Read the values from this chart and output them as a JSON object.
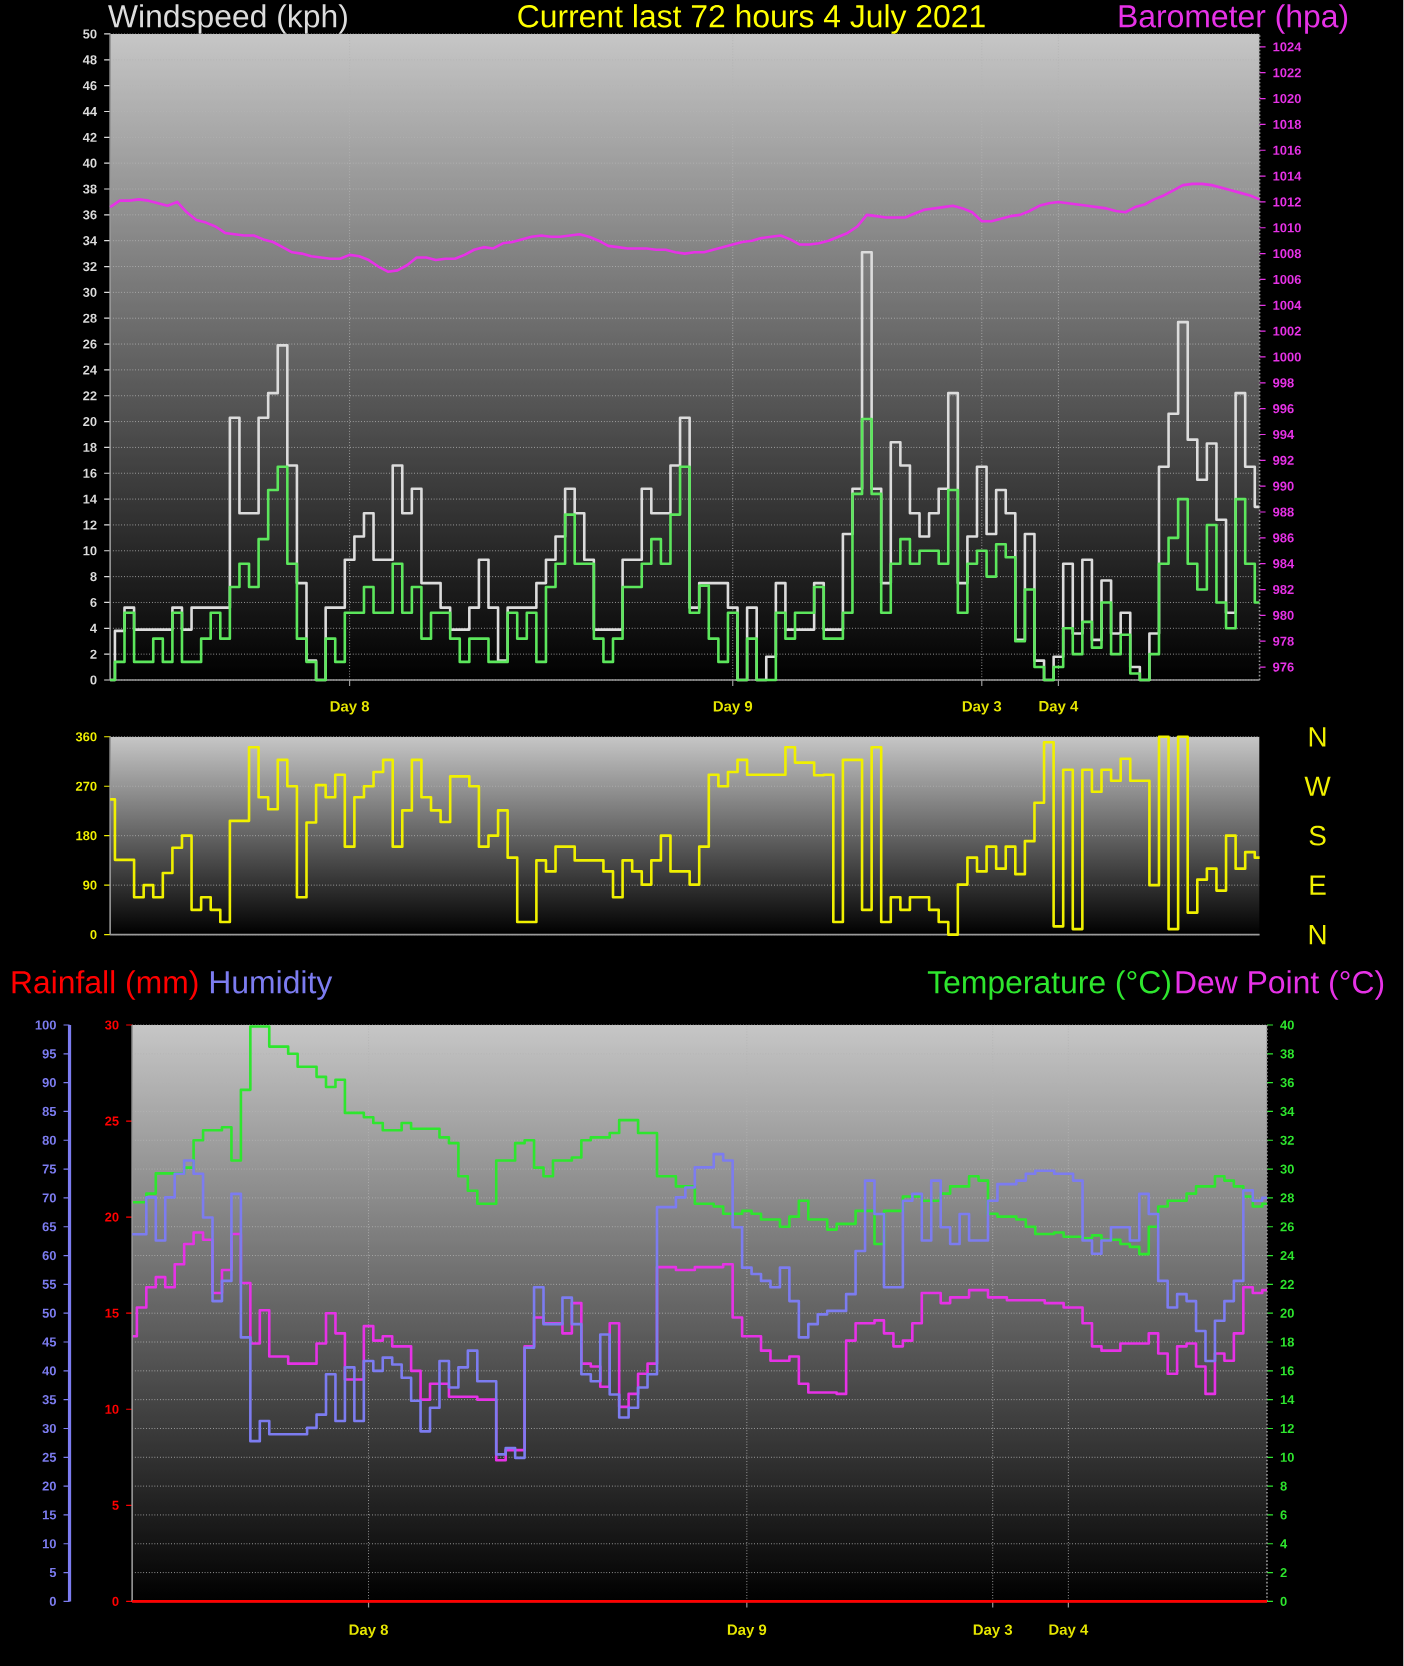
{
  "chart_data": [
    {
      "type": "step",
      "title": "Current last 72 hours 4 July 2021",
      "ylabel": "Windspeed (kph)",
      "y2label": "Barometer (hpa)",
      "categories": [
        null,
        null,
        null,
        null,
        null,
        null,
        null,
        null,
        null,
        null,
        null,
        null,
        null,
        null,
        null,
        null,
        null,
        null,
        null,
        null,
        null,
        null,
        null,
        null,
        null,
        "Day 8",
        null,
        null,
        null,
        null,
        null,
        null,
        null,
        null,
        null,
        null,
        null,
        null,
        null,
        null,
        null,
        null,
        null,
        null,
        null,
        null,
        null,
        null,
        null,
        null,
        null,
        null,
        null,
        null,
        null,
        null,
        null,
        null,
        null,
        null,
        null,
        null,
        null,
        null,
        null,
        "Day 9",
        null,
        null,
        null,
        null,
        null,
        null,
        null,
        null,
        null,
        null,
        null,
        null,
        null,
        null,
        null,
        null,
        null,
        null,
        null,
        null,
        null,
        null,
        null,
        null,
        null,
        "Day 3",
        null,
        null,
        null,
        null,
        null,
        null,
        null,
        "Day 4",
        null,
        null,
        null,
        null,
        null,
        null,
        null,
        null,
        null,
        null,
        null,
        null,
        null,
        null,
        null,
        null,
        null,
        null,
        null,
        null,
        null
      ],
      "ylim": [
        0,
        50
      ],
      "yticks": [
        0,
        2,
        4,
        6,
        8,
        10,
        12,
        14,
        16,
        18,
        20,
        22,
        24,
        26,
        28,
        30,
        32,
        34,
        36,
        38,
        40,
        42,
        44,
        46,
        48,
        50
      ],
      "y2lim": [
        975,
        1025
      ],
      "y2ticks": [
        976,
        978,
        980,
        982,
        984,
        986,
        988,
        990,
        992,
        994,
        996,
        998,
        1000,
        1002,
        1004,
        1006,
        1008,
        1010,
        1012,
        1014,
        1016,
        1018,
        1020,
        1022,
        1024
      ],
      "grid": true,
      "series": [
        {
          "color": "#dcdcdc",
          "values": [
            0,
            3.8,
            5.6,
            3.9,
            3.9,
            3.9,
            3.9,
            5.6,
            3.9,
            5.6,
            5.6,
            5.6,
            5.6,
            20.3,
            12.9,
            12.9,
            20.3,
            22.2,
            25.9,
            16.6,
            7.5,
            1.5,
            0,
            5.6,
            5.6,
            9.3,
            11.1,
            12.9,
            9.3,
            9.3,
            16.6,
            12.9,
            14.8,
            7.5,
            7.5,
            5.6,
            3.9,
            3.9,
            5.6,
            9.3,
            5.6,
            1.5,
            5.6,
            5.6,
            5.6,
            7.5,
            9.3,
            11.1,
            14.8,
            12.9,
            9.3,
            3.9,
            3.9,
            3.9,
            9.3,
            9.3,
            14.8,
            12.9,
            12.9,
            16.6,
            20.3,
            5.6,
            7.5,
            7.5,
            7.5,
            5.6,
            0,
            5.6,
            0,
            1.8,
            7.5,
            3.9,
            3.9,
            3.9,
            7.5,
            3.9,
            3.9,
            11.3,
            14.8,
            33.1,
            14.8,
            7.5,
            18.4,
            16.6,
            12.9,
            11.1,
            12.9,
            14.8,
            22.2,
            7.5,
            11.1,
            16.5,
            11.3,
            14.7,
            12.9,
            3.1,
            11.3,
            1.5,
            0,
            1.8,
            9.0,
            3.6,
            9.3,
            3.1,
            7.7,
            3.6,
            5.2,
            1.0,
            0,
            3.6,
            16.5,
            20.6,
            27.7,
            18.6,
            15.5,
            18.3,
            12.4,
            5.2,
            22.2,
            16.5,
            13.4
          ]
        },
        {
          "color": "#5ce65c",
          "values": [
            0,
            1.4,
            5.2,
            1.4,
            1.4,
            3.2,
            1.4,
            5.2,
            1.4,
            1.4,
            3.2,
            5.2,
            3.2,
            7.2,
            9.0,
            7.2,
            10.9,
            14.7,
            16.5,
            9.0,
            3.2,
            1.4,
            0,
            3.2,
            1.4,
            5.2,
            5.2,
            7.2,
            5.2,
            5.2,
            9.0,
            5.2,
            7.2,
            3.2,
            5.2,
            5.2,
            3.2,
            1.4,
            3.2,
            3.2,
            1.4,
            1.4,
            5.2,
            3.2,
            5.2,
            1.4,
            7.2,
            9.0,
            12.8,
            9.0,
            9.0,
            3.2,
            1.4,
            3.2,
            7.2,
            7.2,
            9.0,
            10.9,
            9.0,
            12.8,
            16.5,
            5.2,
            7.3,
            3.2,
            1.4,
            5.2,
            0,
            3.2,
            0,
            0,
            5.2,
            3.2,
            5.2,
            5.2,
            7.2,
            3.2,
            3.2,
            5.2,
            14.4,
            20.2,
            14.4,
            5.2,
            9.0,
            10.9,
            9.0,
            10.0,
            10.0,
            9.0,
            14.7,
            5.2,
            9.0,
            10.0,
            8.0,
            10.5,
            9.5,
            3.0,
            7.0,
            1.0,
            0,
            1.0,
            4.0,
            2.0,
            4.5,
            2.5,
            6.0,
            2.0,
            3.5,
            0.5,
            0,
            2.0,
            9.0,
            11.0,
            14.0,
            9.0,
            7.0,
            12.0,
            6.0,
            4.0,
            14.0,
            9.0,
            6.0
          ]
        },
        {
          "type": "line",
          "axis": "y2",
          "color": "#e632e6",
          "values": [
            1011.6,
            1012.1,
            1012.1,
            1012.2,
            1012.1,
            1011.9,
            1011.7,
            1012.0,
            1011.2,
            1010.6,
            1010.4,
            1010.1,
            1009.6,
            1009.5,
            1009.4,
            1009.4,
            1009.1,
            1008.9,
            1008.5,
            1008.1,
            1008.0,
            1007.8,
            1007.7,
            1007.6,
            1007.6,
            1007.9,
            1007.8,
            1007.5,
            1007.0,
            1006.6,
            1006.7,
            1007.1,
            1007.7,
            1007.7,
            1007.5,
            1007.6,
            1007.6,
            1007.9,
            1008.3,
            1008.5,
            1008.4,
            1008.8,
            1008.9,
            1009.1,
            1009.3,
            1009.4,
            1009.3,
            1009.3,
            1009.4,
            1009.5,
            1009.3,
            1009.0,
            1008.6,
            1008.5,
            1008.4,
            1008.4,
            1008.4,
            1008.3,
            1008.3,
            1008.1,
            1008.0,
            1008.1,
            1008.1,
            1008.3,
            1008.5,
            1008.7,
            1008.9,
            1009.0,
            1009.2,
            1009.3,
            1009.4,
            1009.1,
            1008.7,
            1008.7,
            1008.8,
            1009.0,
            1009.3,
            1009.6,
            1010.1,
            1011.0,
            1010.9,
            1010.8,
            1010.8,
            1010.8,
            1011.1,
            1011.4,
            1011.5,
            1011.6,
            1011.7,
            1011.5,
            1011.2,
            1010.5,
            1010.5,
            1010.7,
            1010.9,
            1011.0,
            1011.3,
            1011.7,
            1011.9,
            1012.0,
            1011.9,
            1011.8,
            1011.7,
            1011.6,
            1011.5,
            1011.3,
            1011.2,
            1011.6,
            1011.8,
            1012.2,
            1012.5,
            1012.9,
            1013.3,
            1013.4,
            1013.4,
            1013.3,
            1013.1,
            1012.9,
            1012.7,
            1012.5,
            1012.2
          ]
        }
      ]
    },
    {
      "type": "step",
      "categories": [
        null,
        null,
        null,
        null,
        null,
        null,
        null,
        null,
        null,
        null,
        null,
        null,
        null,
        null,
        null,
        null,
        null,
        null,
        null,
        null,
        null,
        null,
        null,
        null,
        null,
        null,
        null,
        null,
        null,
        null,
        null,
        null,
        null,
        null,
        null,
        null,
        null,
        null,
        null,
        null,
        null,
        null,
        null,
        null,
        null,
        null,
        null,
        null,
        null,
        null,
        null,
        null,
        null,
        null,
        null,
        null,
        null,
        null,
        null,
        null,
        null,
        null,
        null,
        null,
        null,
        null,
        null,
        null,
        null,
        null,
        null,
        null,
        null,
        null,
        null,
        null,
        null,
        null,
        null,
        null,
        null,
        null,
        null,
        null,
        null,
        null,
        null,
        null,
        null,
        null,
        null,
        null,
        null,
        null,
        null,
        null,
        null,
        null,
        null,
        null,
        null,
        null,
        null,
        null,
        null,
        null,
        null,
        null,
        null,
        null,
        null,
        null,
        null,
        null,
        null,
        null,
        null,
        null,
        null,
        null,
        null
      ],
      "ylim": [
        0,
        360
      ],
      "yticks": [
        0,
        90,
        180,
        270,
        360
      ],
      "annotations": [
        "N",
        "W",
        "S",
        "E",
        "N"
      ],
      "grid": "y",
      "tick_labels": "y",
      "series": [
        {
          "color": "#f0f000",
          "values": [
            246,
            136,
            136,
            68,
            90,
            68,
            112,
            158,
            180,
            45,
            68,
            45,
            23,
            207,
            207,
            341,
            250,
            228,
            318,
            270,
            68,
            204,
            272,
            250,
            291,
            160,
            250,
            270,
            296,
            318,
            160,
            226,
            318,
            250,
            226,
            205,
            288,
            288,
            270,
            160,
            180,
            226,
            140,
            23,
            23,
            135,
            115,
            160,
            160,
            135,
            135,
            135,
            115,
            68,
            135,
            115,
            91,
            135,
            180,
            115,
            115,
            91,
            160,
            291,
            270,
            296,
            318,
            291,
            291,
            291,
            291,
            341,
            313,
            313,
            290,
            291,
            23,
            318,
            318,
            45,
            341,
            23,
            68,
            45,
            68,
            68,
            45,
            23,
            0,
            91,
            140,
            115,
            160,
            120,
            160,
            110,
            170,
            240,
            350,
            15,
            300,
            10,
            300,
            260,
            300,
            280,
            320,
            280,
            280,
            90,
            360,
            10,
            360,
            40,
            100,
            120,
            80,
            180,
            120,
            150,
            140
          ]
        }
      ]
    },
    {
      "type": "step",
      "categories": [
        null,
        null,
        null,
        null,
        null,
        null,
        null,
        null,
        null,
        null,
        null,
        null,
        null,
        null,
        null,
        null,
        null,
        null,
        null,
        null,
        null,
        null,
        null,
        null,
        null,
        "Day 8",
        null,
        null,
        null,
        null,
        null,
        null,
        null,
        null,
        null,
        null,
        null,
        null,
        null,
        null,
        null,
        null,
        null,
        null,
        null,
        null,
        null,
        null,
        null,
        null,
        null,
        null,
        null,
        null,
        null,
        null,
        null,
        null,
        null,
        null,
        null,
        null,
        null,
        null,
        null,
        "Day 9",
        null,
        null,
        null,
        null,
        null,
        null,
        null,
        null,
        null,
        null,
        null,
        null,
        null,
        null,
        null,
        null,
        null,
        null,
        null,
        null,
        null,
        null,
        null,
        null,
        null,
        "Day 3",
        null,
        null,
        null,
        null,
        null,
        null,
        null,
        "Day 4",
        null,
        null,
        null,
        null,
        null,
        null,
        null,
        null,
        null,
        null,
        null,
        null,
        null,
        null,
        null,
        null,
        null,
        null,
        null,
        null,
        null
      ],
      "ylim": [
        0,
        30
      ],
      "yticks": [
        0,
        5,
        10,
        15,
        20,
        25,
        30
      ],
      "y2lim": [
        0,
        40
      ],
      "y2ticks": [
        0,
        2,
        4,
        6,
        8,
        10,
        12,
        14,
        16,
        18,
        20,
        22,
        24,
        26,
        28,
        30,
        32,
        34,
        36,
        38,
        40
      ],
      "y3lim": [
        0,
        100
      ],
      "y3ticks": [
        0,
        5,
        10,
        15,
        20,
        25,
        30,
        35,
        40,
        45,
        50,
        55,
        60,
        65,
        70,
        75,
        80,
        85,
        90,
        95,
        100
      ],
      "grid": true,
      "series": [
        {
          "name": "Rainfall (mm)",
          "color": "#ff0000",
          "values": [
            0,
            0,
            0,
            0,
            0,
            0,
            0,
            0,
            0,
            0,
            0,
            0,
            0,
            0,
            0,
            0,
            0,
            0,
            0,
            0,
            0,
            0,
            0,
            0,
            0,
            0,
            0,
            0,
            0,
            0,
            0,
            0,
            0,
            0,
            0,
            0,
            0,
            0,
            0,
            0,
            0,
            0,
            0,
            0,
            0,
            0,
            0,
            0,
            0,
            0,
            0,
            0,
            0,
            0,
            0,
            0,
            0,
            0,
            0,
            0,
            0,
            0,
            0,
            0,
            0,
            0,
            0,
            0,
            0,
            0,
            0,
            0,
            0,
            0,
            0,
            0,
            0,
            0,
            0,
            0,
            0,
            0,
            0,
            0,
            0,
            0,
            0,
            0,
            0,
            0,
            0,
            0,
            0,
            0,
            0,
            0,
            0,
            0,
            0,
            0,
            0,
            0,
            0,
            0,
            0,
            0,
            0,
            0,
            0,
            0,
            0,
            0,
            0,
            0,
            0,
            0,
            0,
            0,
            0,
            0,
            0
          ]
        },
        {
          "name": "Humidity",
          "axis": "y3",
          "color": "#7c7cf0",
          "values": [
            63.7,
            63.7,
            70.1,
            62.6,
            70.1,
            74.2,
            76.5,
            74.2,
            66.6,
            52.1,
            55.6,
            70.7,
            45.8,
            27.8,
            31.3,
            29.0,
            29.0,
            29.0,
            29.0,
            30.1,
            32.4,
            39.4,
            31.3,
            40.6,
            31.3,
            41.7,
            40.0,
            42.3,
            41.1,
            38.8,
            34.8,
            29.5,
            33.6,
            41.7,
            37.1,
            40.6,
            43.5,
            38.2,
            38.2,
            25.5,
            26.6,
            24.9,
            44.0,
            54.5,
            48.1,
            48.1,
            52.7,
            48.1,
            39.4,
            38.2,
            46.3,
            35.9,
            31.9,
            33.6,
            37.1,
            39.4,
            68.4,
            68.4,
            70.1,
            71.8,
            75.3,
            75.3,
            77.6,
            76.5,
            64.9,
            57.9,
            56.8,
            55.6,
            54.5,
            57.9,
            52.1,
            45.8,
            48.1,
            49.8,
            50.4,
            50.4,
            53.3,
            60.8,
            73.0,
            67.2,
            54.5,
            54.5,
            69.5,
            70.7,
            62.6,
            73.0,
            64.9,
            62.0,
            67.2,
            62.6,
            62.6,
            69.5,
            72.4,
            72.4,
            73.0,
            74.2,
            74.7,
            74.7,
            74.2,
            74.2,
            73.0,
            62.6,
            60.3,
            62.6,
            64.9,
            64.9,
            62.6,
            70.7,
            67.2,
            55.6,
            51.0,
            53.3,
            52.1,
            46.9,
            41.7,
            48.7,
            52.1,
            55.6,
            71.3,
            69.5,
            70.0
          ]
        },
        {
          "name": "Temperature (°C)",
          "axis": "y2",
          "color": "#2ee62e",
          "values": [
            27.7,
            27.7,
            28.3,
            29.7,
            29.7,
            29.7,
            30.1,
            32.0,
            32.7,
            32.7,
            32.9,
            30.6,
            35.5,
            39.9,
            39.9,
            38.5,
            38.5,
            38.0,
            37.1,
            37.1,
            36.4,
            35.7,
            36.2,
            33.9,
            33.9,
            33.6,
            33.2,
            32.7,
            32.7,
            33.2,
            32.8,
            32.8,
            32.8,
            32.2,
            31.8,
            29.5,
            28.5,
            27.6,
            27.6,
            30.6,
            30.6,
            31.8,
            32.0,
            30.1,
            29.5,
            30.6,
            30.6,
            30.8,
            32.0,
            32.2,
            32.2,
            32.5,
            33.4,
            33.4,
            32.5,
            32.5,
            29.5,
            29.5,
            28.8,
            28.8,
            27.6,
            27.6,
            27.4,
            26.9,
            26.9,
            27.1,
            26.9,
            26.5,
            26.5,
            26.0,
            26.7,
            27.8,
            26.5,
            26.5,
            25.8,
            26.2,
            26.2,
            27.1,
            27.1,
            24.8,
            27.1,
            27.1,
            28.1,
            28.1,
            27.8,
            27.8,
            28.3,
            28.8,
            28.8,
            29.5,
            29.2,
            26.9,
            26.7,
            26.7,
            26.5,
            26.0,
            25.5,
            25.5,
            25.6,
            25.3,
            25.3,
            25.2,
            25.4,
            25.1,
            25.1,
            24.8,
            24.6,
            24.1,
            26.0,
            27.4,
            27.8,
            27.8,
            28.3,
            28.8,
            28.8,
            29.5,
            29.2,
            28.8,
            28.1,
            27.4,
            27.6
          ]
        },
        {
          "name": "Dew Point (°C)",
          "axis": "y2",
          "color": "#e632e6",
          "values": [
            18.4,
            20.4,
            21.8,
            22.5,
            21.8,
            23.4,
            24.8,
            25.6,
            25.1,
            21.4,
            23.0,
            25.5,
            22.1,
            17.9,
            20.2,
            17.0,
            17.0,
            16.5,
            16.5,
            16.5,
            17.9,
            20.0,
            18.6,
            15.4,
            15.4,
            19.1,
            18.1,
            18.4,
            17.7,
            17.7,
            16.0,
            14.0,
            15.1,
            15.1,
            14.2,
            14.2,
            14.2,
            14.0,
            14.0,
            9.8,
            10.5,
            10.5,
            17.7,
            19.7,
            19.3,
            19.3,
            18.6,
            20.7,
            16.5,
            16.3,
            14.9,
            19.3,
            13.5,
            14.4,
            15.8,
            16.5,
            23.2,
            23.2,
            23.0,
            23.0,
            23.2,
            23.2,
            23.2,
            23.4,
            19.7,
            18.4,
            18.4,
            17.4,
            16.7,
            16.7,
            17.0,
            15.1,
            14.5,
            14.5,
            14.5,
            14.4,
            18.1,
            19.3,
            19.3,
            19.5,
            18.6,
            17.7,
            18.1,
            19.3,
            21.4,
            21.4,
            20.7,
            21.1,
            21.1,
            21.6,
            21.6,
            21.1,
            21.1,
            20.9,
            20.9,
            20.9,
            20.9,
            20.7,
            20.7,
            20.4,
            20.4,
            19.3,
            17.7,
            17.4,
            17.4,
            17.9,
            17.9,
            17.9,
            18.6,
            17.2,
            15.8,
            17.7,
            17.9,
            16.3,
            14.4,
            17.2,
            16.7,
            18.6,
            21.8,
            21.4,
            21.6
          ]
        }
      ]
    }
  ]
}
